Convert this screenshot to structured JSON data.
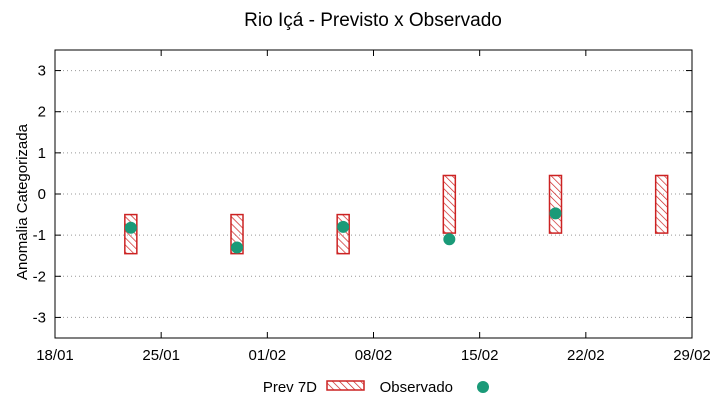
{
  "chart_data": {
    "type": "range-bar-with-points",
    "title": "Rio Içá - Previsto x Observado",
    "xlabel": "",
    "ylabel": "Anomalia Categorizada",
    "x_ticks": [
      "18/01",
      "25/01",
      "01/02",
      "08/02",
      "15/02",
      "22/02",
      "29/02"
    ],
    "xlim_days": [
      0,
      42
    ],
    "ylim": [
      -3.5,
      3.5
    ],
    "y_ticks": [
      3,
      2,
      1,
      0,
      -1,
      -2,
      -3
    ],
    "grid": "horizontal dotted",
    "legend_position": "bottom-center",
    "colors": {
      "forecast": "#cc2222",
      "observed": "#1a9a78",
      "grid": "#999999"
    },
    "series": [
      {
        "name": "Prev 7D",
        "kind": "range",
        "points": [
          {
            "day": 5,
            "low": -1.45,
            "high": -0.5
          },
          {
            "day": 12,
            "low": -1.45,
            "high": -0.5
          },
          {
            "day": 19,
            "low": -1.45,
            "high": -0.5
          },
          {
            "day": 26,
            "low": -0.95,
            "high": 0.45
          },
          {
            "day": 33,
            "low": -0.95,
            "high": 0.45
          },
          {
            "day": 40,
            "low": -0.95,
            "high": 0.45
          }
        ]
      },
      {
        "name": "Observado",
        "kind": "point",
        "points": [
          {
            "day": 5,
            "value": -0.82
          },
          {
            "day": 12,
            "value": -1.3
          },
          {
            "day": 19,
            "value": -0.8
          },
          {
            "day": 26,
            "value": -1.1
          },
          {
            "day": 33,
            "value": -0.47
          }
        ]
      }
    ]
  }
}
